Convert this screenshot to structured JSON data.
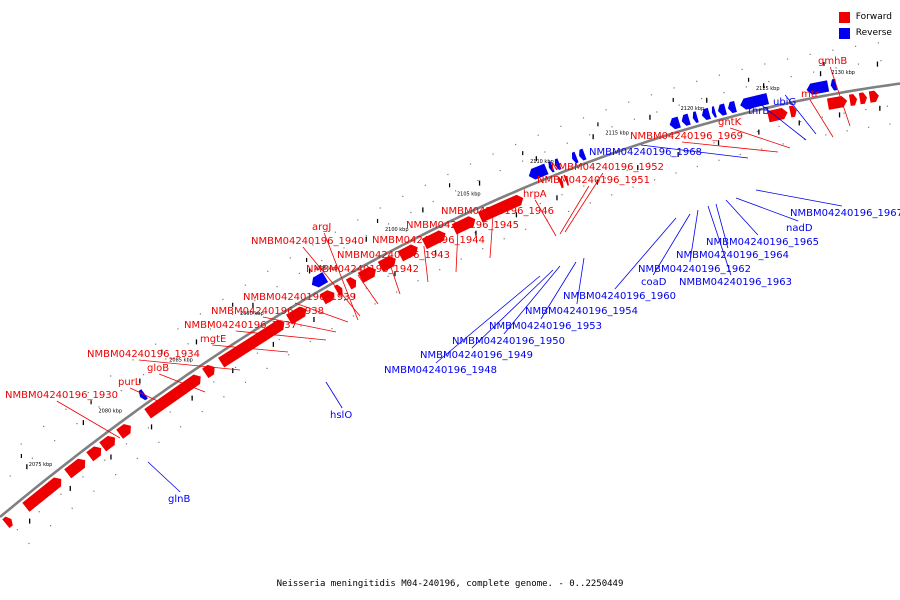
{
  "caption": "Neisseria meningitidis M04-240196, complete genome. - 0..2250449",
  "colors": {
    "forward": "#ee0000",
    "reverse": "#0000ee",
    "backbone": "#808080"
  },
  "legend": [
    {
      "label": "Forward",
      "color": "#ee0000"
    },
    {
      "label": "Reverse",
      "color": "#0000ee"
    }
  ],
  "ticks": [
    "2075 kbp",
    "2080 kbp",
    "2085 kbp",
    "2090 kbp",
    "2095 kbp",
    "2100 kbp",
    "2105 kbp",
    "2110 kbp",
    "2115 kbp",
    "2120 kbp",
    "2125 kbp",
    "2130 kbp"
  ],
  "genes": [
    {
      "name": "NMBM04240196_1930",
      "strand": "forward"
    },
    {
      "name": "purL",
      "strand": "forward"
    },
    {
      "name": "gloB",
      "strand": "forward"
    },
    {
      "name": "NMBM04240196_1934",
      "strand": "forward"
    },
    {
      "name": "mgtE",
      "strand": "forward"
    },
    {
      "name": "NMBM04240196_1937",
      "strand": "forward"
    },
    {
      "name": "NMBM04240196_1938",
      "strand": "forward"
    },
    {
      "name": "NMBM04240196_1939",
      "strand": "forward"
    },
    {
      "name": "NMBM04240196_1942",
      "strand": "forward"
    },
    {
      "name": "NMBM04240196_1943",
      "strand": "forward"
    },
    {
      "name": "NMBM04240196_1940",
      "strand": "forward"
    },
    {
      "name": "argJ",
      "strand": "forward"
    },
    {
      "name": "NMBM04240196_1944",
      "strand": "forward"
    },
    {
      "name": "NMBM04240196_1945",
      "strand": "forward"
    },
    {
      "name": "NMBM04240196_1946",
      "strand": "forward"
    },
    {
      "name": "hrpA",
      "strand": "forward"
    },
    {
      "name": "NMBM04240196_1951",
      "strand": "forward"
    },
    {
      "name": "NMBM04240196_1952",
      "strand": "forward"
    },
    {
      "name": "NMBM04240196_1969",
      "strand": "forward"
    },
    {
      "name": "gntK",
      "strand": "forward"
    },
    {
      "name": "mtr",
      "strand": "forward"
    },
    {
      "name": "gmhB",
      "strand": "forward"
    },
    {
      "name": "glnB",
      "strand": "reverse"
    },
    {
      "name": "hslO",
      "strand": "reverse"
    },
    {
      "name": "NMBM04240196_1948",
      "strand": "reverse"
    },
    {
      "name": "NMBM04240196_1949",
      "strand": "reverse"
    },
    {
      "name": "NMBM04240196_1950",
      "strand": "reverse"
    },
    {
      "name": "NMBM04240196_1953",
      "strand": "reverse"
    },
    {
      "name": "NMBM04240196_1954",
      "strand": "reverse"
    },
    {
      "name": "NMBM04240196_1960",
      "strand": "reverse"
    },
    {
      "name": "coaD",
      "strand": "reverse"
    },
    {
      "name": "NMBM04240196_1962",
      "strand": "reverse"
    },
    {
      "name": "NMBM04240196_1963",
      "strand": "reverse"
    },
    {
      "name": "NMBM04240196_1964",
      "strand": "reverse"
    },
    {
      "name": "NMBM04240196_1965",
      "strand": "reverse"
    },
    {
      "name": "nadD",
      "strand": "reverse"
    },
    {
      "name": "NMBM04240196_1967",
      "strand": "reverse"
    },
    {
      "name": "NMBM04240196_1968",
      "strand": "reverse"
    },
    {
      "name": "thrB",
      "strand": "reverse"
    },
    {
      "name": "ubiG",
      "strand": "reverse"
    }
  ]
}
